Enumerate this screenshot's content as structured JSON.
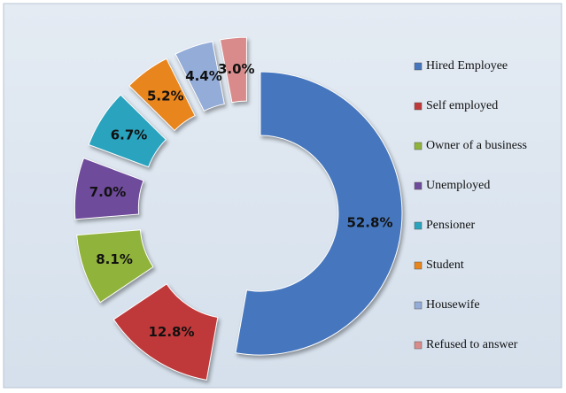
{
  "chart_data": {
    "type": "donut",
    "categories": [
      "Hired Employee",
      "Self employed",
      "Owner of a business",
      "Unemployed",
      "Pensioner",
      "Student",
      "Housewife",
      "Refused to answer"
    ],
    "values": [
      52.8,
      12.8,
      8.1,
      7.0,
      6.7,
      5.2,
      4.4,
      3.0
    ],
    "value_labels": [
      "52.8%",
      "12.8%",
      "8.1%",
      "7.0%",
      "6.7%",
      "5.2%",
      "4.4%",
      "3.0%"
    ],
    "colors": [
      "#4677be",
      "#c0393a",
      "#90b33c",
      "#6f4b9b",
      "#2aa3bf",
      "#e8851d",
      "#93acd8",
      "#d98b8b"
    ],
    "legend": "right"
  }
}
